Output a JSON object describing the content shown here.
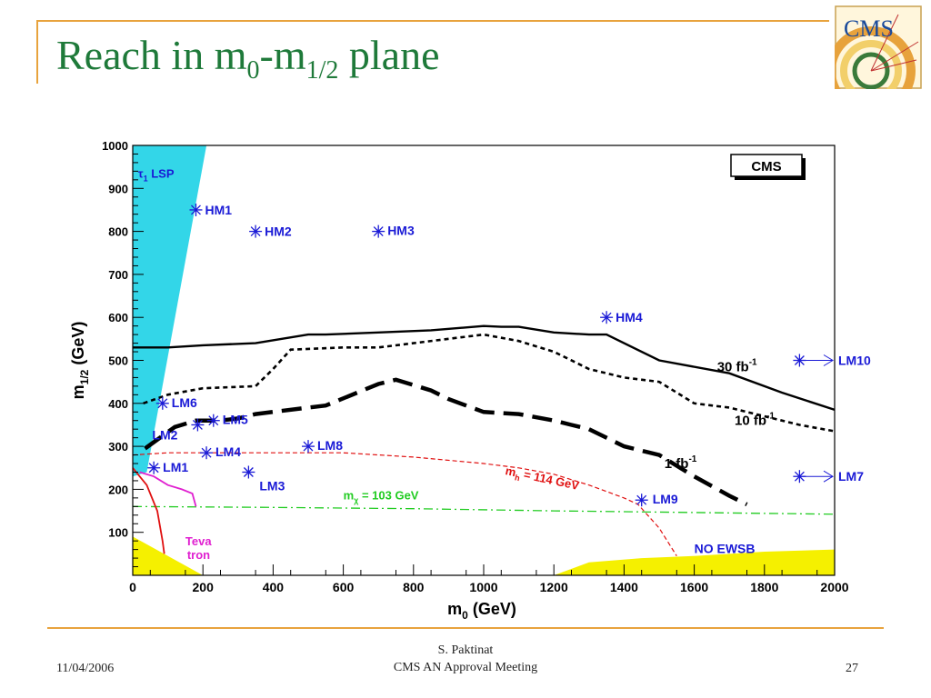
{
  "slide": {
    "title_main": "Reach in m",
    "title_sub1": "0",
    "title_dash": "-m",
    "title_sub2": "1/2",
    "title_end": " plane",
    "logo_text": "CMS",
    "footer": {
      "date": "11/04/2006",
      "author": "S. Paktinat",
      "meeting": "CMS AN Approval Meeting",
      "page": "27"
    }
  },
  "colors": {
    "title": "#1f7a3a",
    "frame": "#e8a33d",
    "points": "#1a1ad6",
    "stau_region": "#33d6e8",
    "no_ewsb_region": "#f5f000",
    "higgs_line": "#e01010",
    "chargino_line": "#22cc22",
    "tevatron": "#e020d0"
  },
  "chart_data": {
    "type": "line",
    "xlabel": "m0 (GeV)",
    "ylabel": "m1/2 (GeV)",
    "xlim": [
      0,
      2000
    ],
    "ylim": [
      0,
      1000
    ],
    "x_ticks": [
      0,
      200,
      400,
      600,
      800,
      1000,
      1200,
      1400,
      1600,
      1800,
      2000
    ],
    "y_ticks": [
      100,
      200,
      300,
      400,
      500,
      600,
      700,
      800,
      900,
      1000
    ],
    "grid": false,
    "badge": "CMS",
    "series": [
      {
        "name": "30 fb-1",
        "style": "solid",
        "color": "#000000",
        "x": [
          0,
          100,
          200,
          350,
          500,
          550,
          700,
          850,
          1000,
          1050,
          1100,
          1200,
          1300,
          1350,
          1500,
          1700,
          1850,
          2000
        ],
        "y": [
          530,
          530,
          535,
          540,
          560,
          560,
          565,
          570,
          580,
          578,
          578,
          565,
          560,
          560,
          500,
          470,
          425,
          385
        ]
      },
      {
        "name": "10 fb-1",
        "style": "dotted",
        "color": "#000000",
        "x": [
          30,
          100,
          200,
          350,
          400,
          450,
          600,
          700,
          800,
          900,
          1000,
          1100,
          1200,
          1300,
          1400,
          1500,
          1600,
          1700,
          1800,
          1900,
          2000
        ],
        "y": [
          400,
          420,
          435,
          440,
          480,
          525,
          530,
          530,
          540,
          550,
          560,
          545,
          520,
          480,
          460,
          450,
          400,
          390,
          370,
          350,
          335
        ]
      },
      {
        "name": "1 fb-1",
        "style": "dashed",
        "color": "#000000",
        "x": [
          35,
          120,
          180,
          250,
          300,
          350,
          500,
          550,
          700,
          750,
          850,
          900,
          1000,
          1100,
          1200,
          1250,
          1300,
          1400,
          1500,
          1600,
          1700,
          1750
        ],
        "y": [
          295,
          345,
          360,
          360,
          365,
          375,
          390,
          395,
          445,
          455,
          430,
          410,
          380,
          375,
          360,
          350,
          340,
          300,
          280,
          230,
          185,
          165
        ]
      },
      {
        "name": "mh = 114 GeV",
        "style": "dashed",
        "color": "#e01010",
        "x": [
          0,
          100,
          200,
          400,
          600,
          800,
          1000,
          1100,
          1200,
          1300,
          1400,
          1440,
          1500,
          1550
        ],
        "y": [
          280,
          285,
          285,
          285,
          285,
          275,
          260,
          250,
          235,
          210,
          180,
          165,
          110,
          45
        ]
      },
      {
        "name": "mχ = 103 GeV",
        "style": "dashdot",
        "color": "#22cc22",
        "x": [
          0,
          400,
          800,
          1200,
          1600,
          2000
        ],
        "y": [
          160,
          158,
          155,
          150,
          146,
          142
        ]
      }
    ],
    "regions": [
      {
        "name": "τ1 LSP",
        "color": "#33d6e8",
        "x": [
          0,
          0,
          210,
          40
        ],
        "y": [
          230,
          1000,
          1000,
          240
        ]
      },
      {
        "name": "NO EWSB",
        "color": "#f5f000",
        "x": [
          1200,
          1300,
          1450,
          1600,
          1800,
          2000,
          2000,
          1200
        ],
        "y": [
          0,
          30,
          40,
          45,
          55,
          60,
          0,
          0
        ]
      },
      {
        "name": "low-m0 excluded",
        "color": "#f5f000",
        "x": [
          0,
          80,
          160,
          200,
          0
        ],
        "y": [
          0,
          0,
          0,
          0,
          90
        ]
      }
    ],
    "benchmarks": [
      {
        "label": "HM1",
        "x": 180,
        "y": 850
      },
      {
        "label": "HM2",
        "x": 350,
        "y": 800
      },
      {
        "label": "HM3",
        "x": 700,
        "y": 800
      },
      {
        "label": "HM4",
        "x": 1350,
        "y": 600
      },
      {
        "label": "LM10",
        "x": 1900,
        "y": 500
      },
      {
        "label": "LM6",
        "x": 85,
        "y": 400
      },
      {
        "label": "LM5",
        "x": 230,
        "y": 360
      },
      {
        "label": "LM2",
        "x": 185,
        "y": 350
      },
      {
        "label": "LM4",
        "x": 210,
        "y": 285
      },
      {
        "label": "LM8",
        "x": 500,
        "y": 300
      },
      {
        "label": "LM1",
        "x": 60,
        "y": 250
      },
      {
        "label": "LM3",
        "x": 330,
        "y": 240
      },
      {
        "label": "LM9",
        "x": 1450,
        "y": 175
      },
      {
        "label": "LM7",
        "x": 1900,
        "y": 230
      }
    ],
    "annotations": [
      {
        "text": "τ1 LSP"
      },
      {
        "text": "30 fb-1"
      },
      {
        "text": "10 fb-1"
      },
      {
        "text": "1 fb-1"
      },
      {
        "text": "mh = 114 GeV"
      },
      {
        "text": "mχ = 103 GeV"
      },
      {
        "text": "Teva"
      },
      {
        "text": "tron"
      },
      {
        "text": "NO EWSB"
      }
    ],
    "tevatron_curve": {
      "x": [
        20,
        60,
        100,
        140,
        170,
        180
      ],
      "y": [
        240,
        230,
        210,
        200,
        190,
        160
      ]
    },
    "lep_curve": {
      "x": [
        0,
        40,
        70,
        85,
        90
      ],
      "y": [
        250,
        210,
        150,
        80,
        50
      ]
    }
  }
}
